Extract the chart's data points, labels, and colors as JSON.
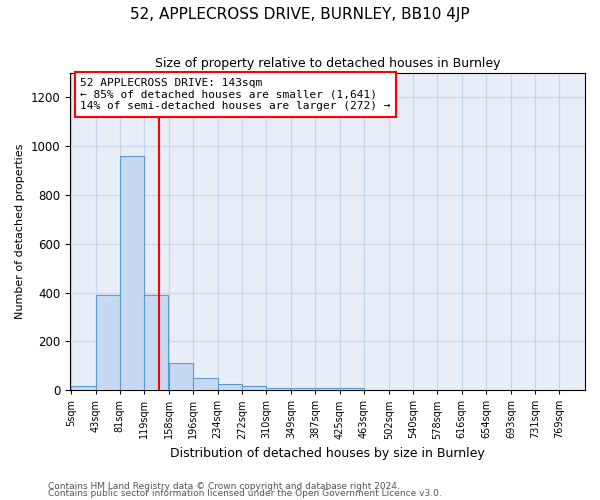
{
  "title": "52, APPLECROSS DRIVE, BURNLEY, BB10 4JP",
  "subtitle": "Size of property relative to detached houses in Burnley",
  "xlabel": "Distribution of detached houses by size in Burnley",
  "ylabel": "Number of detached properties",
  "footnote1": "Contains HM Land Registry data © Crown copyright and database right 2024.",
  "footnote2": "Contains public sector information licensed under the Open Government Licence v3.0.",
  "bin_labels": [
    "5sqm",
    "43sqm",
    "81sqm",
    "119sqm",
    "158sqm",
    "196sqm",
    "234sqm",
    "272sqm",
    "310sqm",
    "349sqm",
    "387sqm",
    "425sqm",
    "463sqm",
    "502sqm",
    "540sqm",
    "578sqm",
    "616sqm",
    "654sqm",
    "693sqm",
    "731sqm",
    "769sqm"
  ],
  "bin_edges": [
    5,
    43,
    81,
    119,
    158,
    196,
    234,
    272,
    310,
    349,
    387,
    425,
    463,
    502,
    540,
    578,
    616,
    654,
    693,
    731,
    769
  ],
  "bar_heights": [
    15,
    390,
    960,
    390,
    110,
    50,
    25,
    15,
    10,
    10,
    10,
    10,
    0,
    0,
    0,
    0,
    0,
    0,
    0,
    0
  ],
  "bar_color": "#c6d9f1",
  "bar_edge_color": "#5b9bd5",
  "red_line_x": 143,
  "ylim": [
    0,
    1300
  ],
  "yticks": [
    0,
    200,
    400,
    600,
    800,
    1000,
    1200
  ],
  "annotation_text": "52 APPLECROSS DRIVE: 143sqm\n← 85% of detached houses are smaller (1,641)\n14% of semi-detached houses are larger (272) →",
  "annotation_box_color": "white",
  "annotation_box_edge_color": "red",
  "grid_color": "#c8d4e8",
  "background_color": "#e8eef8"
}
